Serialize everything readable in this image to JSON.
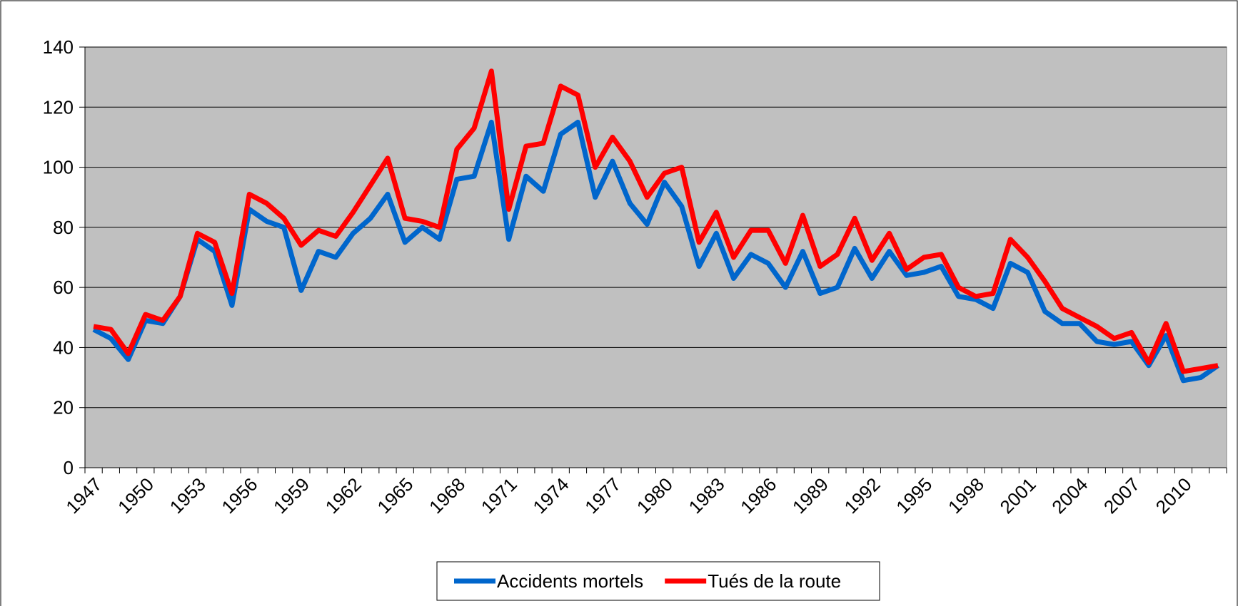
{
  "chart_data": {
    "type": "line",
    "categories": [
      "1947",
      null,
      null,
      "1950",
      null,
      null,
      "1953",
      null,
      null,
      "1956",
      null,
      null,
      "1959",
      null,
      null,
      "1962",
      null,
      null,
      "1965",
      null,
      null,
      "1968",
      null,
      null,
      "1971",
      null,
      null,
      "1974",
      null,
      null,
      "1977",
      null,
      null,
      "1980",
      null,
      null,
      "1983",
      null,
      null,
      "1986",
      null,
      null,
      "1989",
      null,
      null,
      "1992",
      null,
      null,
      "1995",
      null,
      null,
      "1998",
      null,
      null,
      "2001",
      null,
      null,
      "2004",
      null,
      null,
      "2007",
      null,
      null,
      "2010",
      null,
      null
    ],
    "series": [
      {
        "name": "Accidents mortels",
        "color": "#0066cc",
        "values": [
          46,
          43,
          36,
          49,
          48,
          57,
          76,
          72,
          54,
          86,
          82,
          80,
          59,
          72,
          70,
          78,
          83,
          91,
          75,
          80,
          76,
          96,
          97,
          115,
          76,
          97,
          92,
          111,
          115,
          90,
          102,
          88,
          81,
          95,
          87,
          67,
          78,
          63,
          71,
          68,
          60,
          72,
          58,
          60,
          73,
          63,
          72,
          64,
          65,
          67,
          57,
          56,
          53,
          68,
          65,
          52,
          48,
          48,
          42,
          41,
          42,
          34,
          44,
          29,
          30,
          34
        ]
      },
      {
        "name": "Tués de la route",
        "color": "#ff0000",
        "values": [
          47,
          46,
          38,
          51,
          49,
          57,
          78,
          75,
          58,
          91,
          88,
          83,
          74,
          79,
          77,
          85,
          94,
          103,
          83,
          82,
          80,
          106,
          113,
          132,
          86,
          107,
          108,
          127,
          124,
          100,
          110,
          102,
          90,
          98,
          100,
          75,
          85,
          70,
          79,
          79,
          68,
          84,
          67,
          71,
          83,
          69,
          78,
          66,
          70,
          71,
          60,
          57,
          58,
          76,
          70,
          62,
          53,
          50,
          47,
          43,
          45,
          35,
          48,
          32,
          33,
          34
        ]
      }
    ],
    "ylim": [
      0,
      140
    ],
    "yticks": [
      0,
      20,
      40,
      60,
      80,
      100,
      120,
      140
    ],
    "grid": true,
    "legend": "bottom"
  }
}
